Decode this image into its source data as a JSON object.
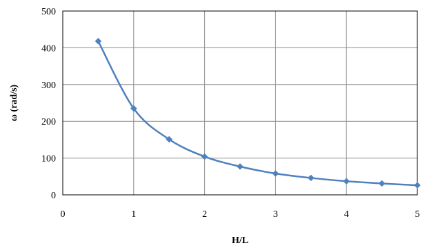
{
  "chart_data": {
    "type": "line",
    "title": "",
    "xlabel": "H/L",
    "ylabel": "ω (rad/s)",
    "xlim": [
      0,
      5
    ],
    "ylim": [
      0,
      500
    ],
    "xticks": [
      "0",
      "1",
      "2",
      "3",
      "4",
      "5"
    ],
    "yticks": [
      "0",
      "100",
      "200",
      "300",
      "400",
      "500"
    ],
    "grid": true,
    "legend": "none",
    "smooth": true,
    "marker": "diamond",
    "series": [
      {
        "color": "#4f81bd",
        "x": [
          0.5,
          1.0,
          1.5,
          2.0,
          2.5,
          3.0,
          3.5,
          4.0,
          4.5,
          5.0
        ],
        "y": [
          418,
          235,
          151,
          104,
          77,
          58,
          46,
          37,
          31,
          26
        ]
      }
    ]
  }
}
